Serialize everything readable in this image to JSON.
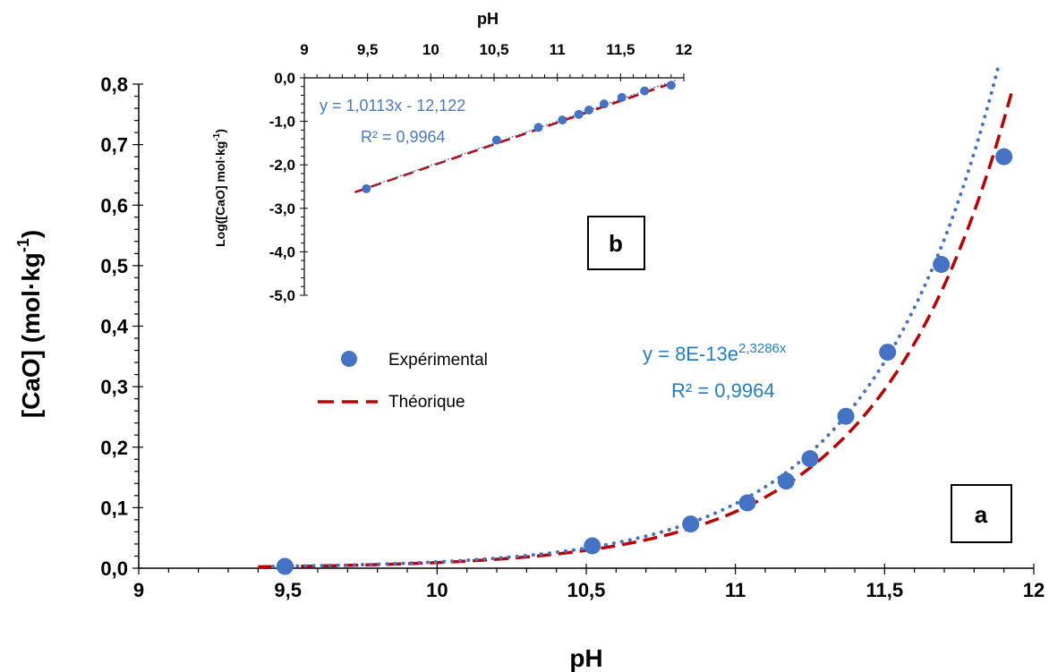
{
  "chart_data": [
    {
      "panel": "a",
      "type": "scatter",
      "xlabel": "pH",
      "ylabel": "[CaO] (mol·kg",
      "ylabel_sup": "-1",
      "ylabel_end": ")",
      "xlim": [
        9,
        12
      ],
      "ylim": [
        0,
        0.8
      ],
      "x_ticks": [
        "9",
        "9,5",
        "10",
        "10,5",
        "11",
        "11,5",
        "12"
      ],
      "y_ticks": [
        "0,0",
        "0,1",
        "0,2",
        "0,3",
        "0,4",
        "0,5",
        "0,6",
        "0,7",
        "0,8"
      ],
      "series": [
        {
          "name": "Expérimental",
          "kind": "markers",
          "color": "#4472c4",
          "x": [
            9.49,
            10.52,
            10.85,
            11.04,
            11.17,
            11.25,
            11.37,
            11.51,
            11.69,
            11.9
          ],
          "y": [
            0.003,
            0.037,
            0.073,
            0.108,
            0.144,
            0.181,
            0.251,
            0.357,
            0.502,
            0.68
          ]
        },
        {
          "name": "Théorique",
          "kind": "dashed-line",
          "color": "#c00000",
          "model": "pow10",
          "slope": 1,
          "intercept": -12.03,
          "x_range": [
            9.4,
            11.93
          ]
        },
        {
          "kind": "dotted-trendline",
          "color": "#4472c4",
          "model": "exp",
          "a": 8e-13,
          "b": 2.3286,
          "x_range": [
            9.45,
            11.88
          ]
        }
      ],
      "equation": {
        "text": "y = 8E-13e",
        "sup": "2,3286x",
        "r2": "R² = 0,9964"
      },
      "panel_label": "a",
      "legend": {
        "placement": "center-left",
        "entries": [
          "Expérimental",
          "Théorique"
        ]
      }
    },
    {
      "panel": "b",
      "type": "scatter",
      "xlabel": "pH",
      "ylabel": "Log([CaO] mol·kg",
      "ylabel_sup": "-1",
      "ylabel_end": ")",
      "xlim": [
        9,
        12
      ],
      "ylim": [
        -5,
        0
      ],
      "x_ticks": [
        "9",
        "9,5",
        "10",
        "10,5",
        "11",
        "11,5",
        "12"
      ],
      "y_ticks": [
        "0,0",
        "-1,0",
        "-2,0",
        "-3,0",
        "-4,0",
        "-5,0"
      ],
      "series": [
        {
          "kind": "markers",
          "color": "#4472c4",
          "x": [
            9.49,
            10.52,
            10.85,
            11.04,
            11.17,
            11.25,
            11.37,
            11.51,
            11.69,
            11.9
          ],
          "y": [
            -2.55,
            -1.43,
            -1.14,
            -0.97,
            -0.84,
            -0.74,
            -0.6,
            -0.45,
            -0.3,
            -0.17
          ]
        },
        {
          "kind": "dashed-line",
          "color": "#c00000",
          "model": "linear",
          "slope": 1,
          "intercept": -12.03,
          "x_range": [
            9.4,
            11.93
          ]
        },
        {
          "kind": "thin-dotted-trendline",
          "color": "#4472c4",
          "model": "linear",
          "slope": 1.0113,
          "intercept": -12.122,
          "x_range": [
            9.49,
            11.95
          ]
        }
      ],
      "equation": {
        "text": "y = 1,0113x - 12,122",
        "r2": "R² = 0,9964"
      },
      "panel_label": "b"
    }
  ]
}
